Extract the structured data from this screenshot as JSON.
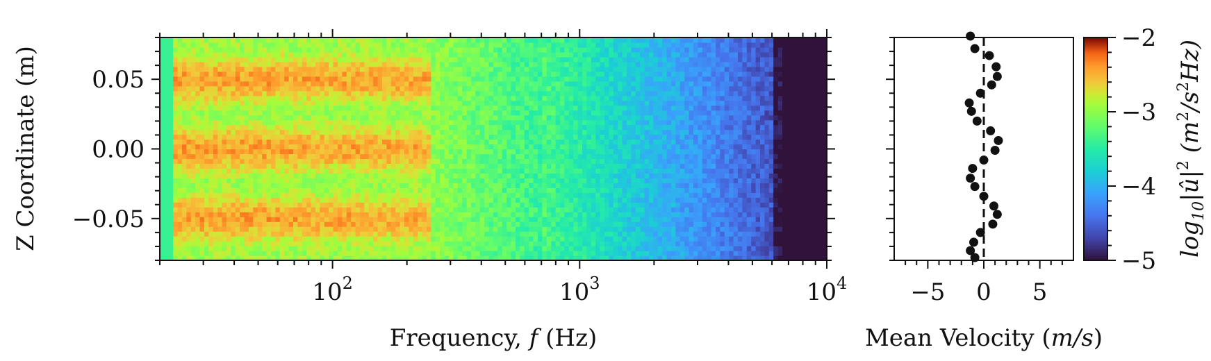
{
  "chart_data": [
    {
      "type": "heatmap",
      "xlabel_prefix": "Frequency, ",
      "xlabel_var": "f",
      "xlabel_suffix": " (Hz)",
      "ylabel": "Z Coordinate (m)",
      "xscale": "log",
      "xlim": [
        20,
        10000
      ],
      "ylim": [
        -0.08,
        0.08
      ],
      "x_ticks": [
        {
          "value": 100,
          "base": "10",
          "exp": "2"
        },
        {
          "value": 1000,
          "base": "10",
          "exp": "3"
        },
        {
          "value": 10000,
          "base": "10",
          "exp": "4"
        }
      ],
      "y_ticks": [
        {
          "value": 0.05,
          "label": "0.05"
        },
        {
          "value": 0.0,
          "label": "0.00"
        },
        {
          "value": -0.05,
          "label": "−0.05"
        }
      ],
      "colormap": "turbo",
      "colorbar": {
        "range": [
          -5,
          -2
        ],
        "ticks": [
          {
            "value": -2,
            "label": "−2"
          },
          {
            "value": -3,
            "label": "−3"
          },
          {
            "value": -4,
            "label": "−4"
          },
          {
            "value": -5,
            "label": "−5"
          }
        ],
        "label_log": "log",
        "label_sub": "10",
        "label_mid": "|û|",
        "label_sup": "2",
        "label_units_pre": " (m",
        "label_units_sup": "2",
        "label_units_post": "/s",
        "label_units_sup2": "2",
        "label_units_end": "Hz)"
      },
      "grid": false
    },
    {
      "type": "scatter",
      "xlabel_prefix": "Mean Velocity (",
      "xlabel_var": "m/s",
      "xlabel_suffix": ")",
      "xlim": [
        -8,
        8
      ],
      "ylim": [
        -0.08,
        0.08
      ],
      "x_ticks": [
        {
          "value": -5,
          "label": "−5"
        },
        {
          "value": 0,
          "label": "0"
        },
        {
          "value": 5,
          "label": "5"
        }
      ],
      "reference_line": {
        "x": 0,
        "style": "dashed"
      },
      "points": [
        {
          "x": -1.2,
          "y": 0.081
        },
        {
          "x": -0.8,
          "y": 0.072
        },
        {
          "x": 0.5,
          "y": 0.067
        },
        {
          "x": 1.1,
          "y": 0.059
        },
        {
          "x": 1.2,
          "y": 0.052
        },
        {
          "x": 0.7,
          "y": 0.046
        },
        {
          "x": -0.3,
          "y": 0.04
        },
        {
          "x": -1.3,
          "y": 0.033
        },
        {
          "x": -1.1,
          "y": 0.027
        },
        {
          "x": -0.6,
          "y": 0.02
        },
        {
          "x": 0.6,
          "y": 0.013
        },
        {
          "x": 1.3,
          "y": 0.006
        },
        {
          "x": 1.0,
          "y": -0.001
        },
        {
          "x": 0.0,
          "y": -0.008
        },
        {
          "x": -1.0,
          "y": -0.014
        },
        {
          "x": -1.2,
          "y": -0.021
        },
        {
          "x": -0.8,
          "y": -0.027
        },
        {
          "x": 0.0,
          "y": -0.034
        },
        {
          "x": 0.9,
          "y": -0.041
        },
        {
          "x": 1.2,
          "y": -0.047
        },
        {
          "x": 0.8,
          "y": -0.054
        },
        {
          "x": -0.3,
          "y": -0.06
        },
        {
          "x": -0.9,
          "y": -0.067
        },
        {
          "x": -1.2,
          "y": -0.073
        },
        {
          "x": -0.8,
          "y": -0.078
        }
      ],
      "point_color": "#111111",
      "grid": false
    }
  ]
}
